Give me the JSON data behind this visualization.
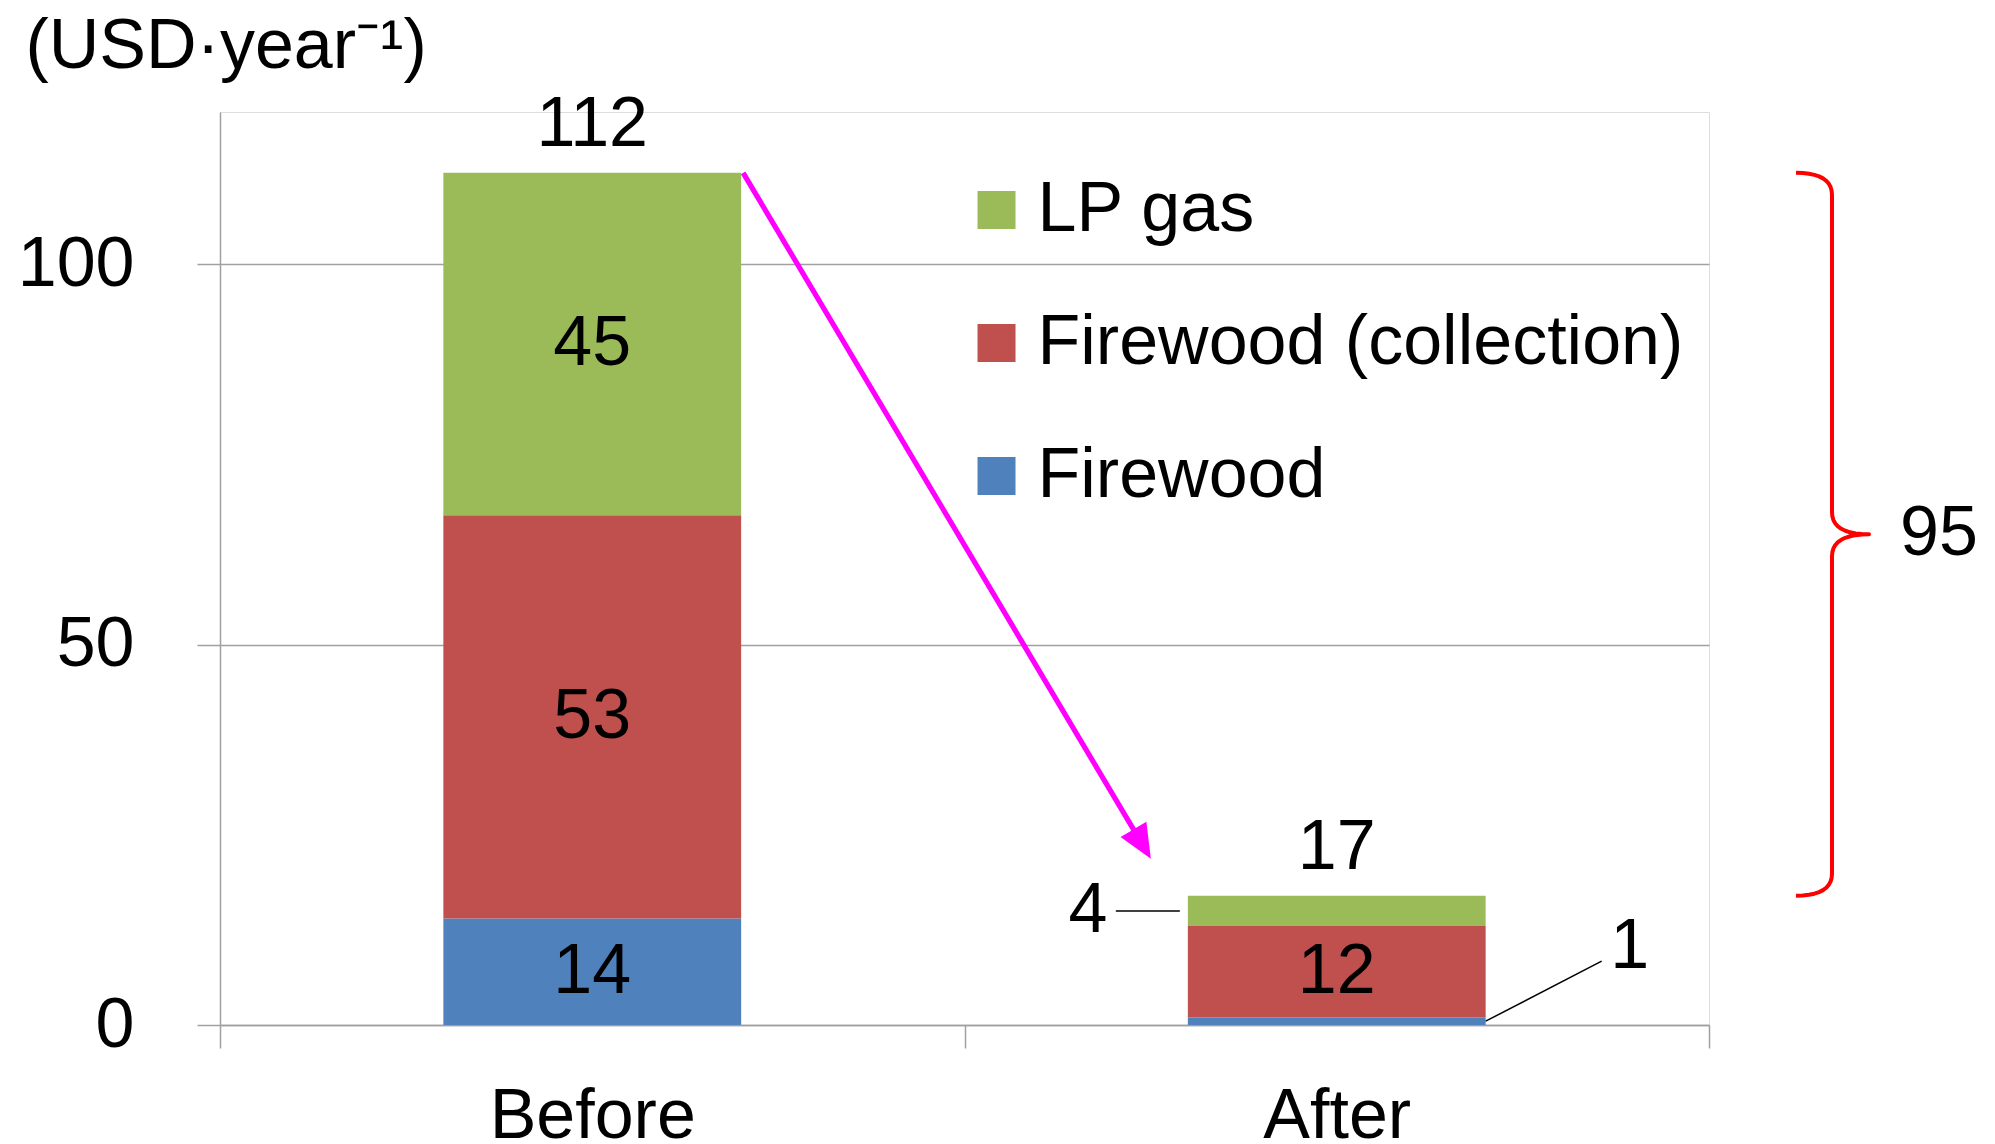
{
  "chart_data": {
    "type": "bar",
    "ylabel": "(USD·year⁻¹)",
    "categories": [
      "Before",
      "After"
    ],
    "stacked": true,
    "series": [
      {
        "name": "Firewood",
        "color": "#4f81bd",
        "values": [
          14,
          1
        ]
      },
      {
        "name": "Firewood (collection)",
        "color": "#c0504d",
        "values": [
          53,
          12
        ]
      },
      {
        "name": "LP gas",
        "color": "#9bbb59",
        "values": [
          45,
          4
        ]
      }
    ],
    "ylim": [
      0,
      120
    ],
    "yticks": [
      0,
      50,
      100
    ],
    "grid": "y",
    "legend": "top right",
    "data_labels": true,
    "totals": [
      "112",
      "17"
    ],
    "annotations": [
      "95"
    ]
  }
}
